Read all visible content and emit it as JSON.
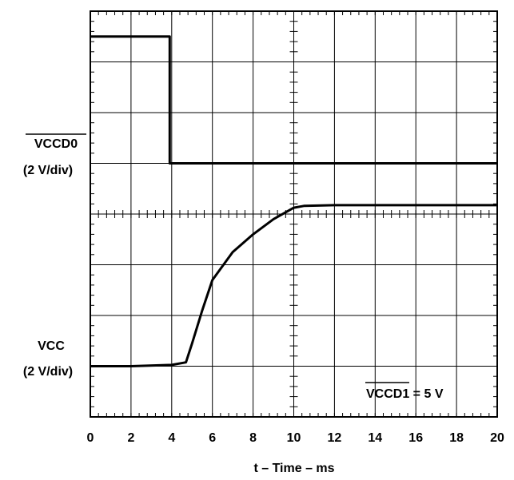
{
  "chart_data": {
    "type": "line",
    "xlabel": "t – Time – ms",
    "xlim": [
      0,
      20
    ],
    "x_ticks": [
      "0",
      "2",
      "4",
      "6",
      "8",
      "10",
      "12",
      "14",
      "16",
      "18",
      "20"
    ],
    "x_divisions": 10,
    "y_divisions": 8,
    "grid": true,
    "channels": [
      {
        "label": "VCCD0",
        "overline": true,
        "scale": "(2 V/div)",
        "units_per_div": 2,
        "ref_div": 5,
        "x": [
          0,
          3.9,
          3.9,
          20
        ],
        "y": [
          5,
          5,
          0,
          0
        ]
      },
      {
        "label": "VCC",
        "overline": false,
        "scale": "(2 V/div)",
        "units_per_div": 2,
        "ref_div": 1,
        "x": [
          0,
          2,
          4,
          4.7,
          5.0,
          5.5,
          6.0,
          7.0,
          8.0,
          9.0,
          10.0,
          10.5,
          12,
          14,
          16,
          18,
          20
        ],
        "y": [
          0,
          0,
          0.05,
          0.15,
          0.9,
          2.2,
          3.4,
          4.5,
          5.2,
          5.8,
          6.25,
          6.32,
          6.35,
          6.35,
          6.35,
          6.35,
          6.35
        ]
      }
    ],
    "annotation": {
      "overline_part": "VCCD1",
      "rest": " = 5 V"
    }
  }
}
